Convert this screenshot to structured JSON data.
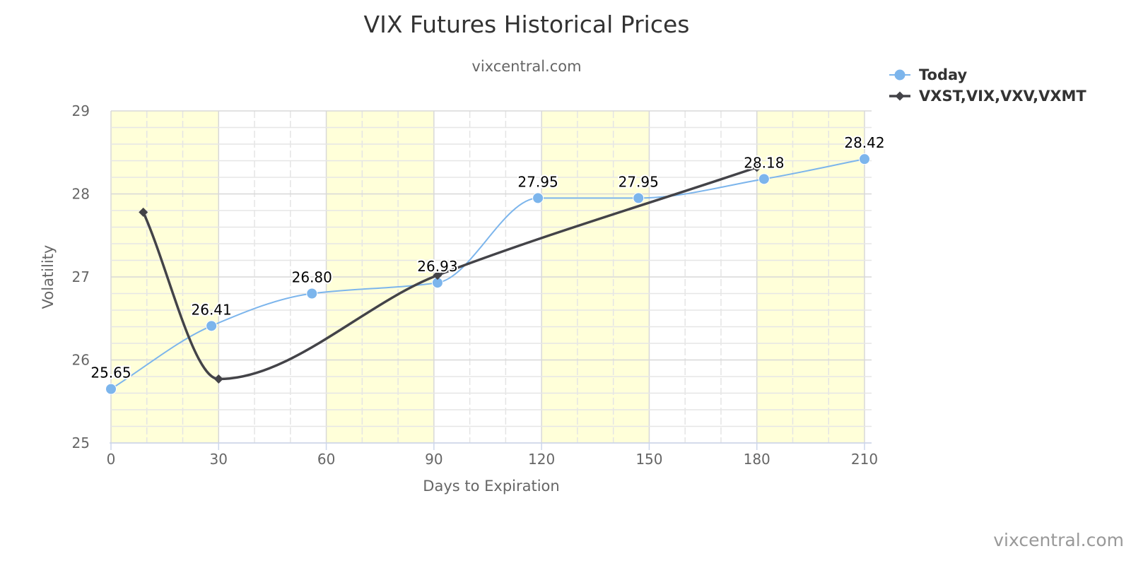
{
  "chart_data": {
    "type": "line",
    "title": "VIX Futures Historical Prices",
    "subtitle": "vixcentral.com",
    "xlabel": "Days to Expiration",
    "ylabel": "Volatility",
    "credit": "vixcentral.com",
    "xlim": [
      0,
      210
    ],
    "ylim": [
      25,
      29
    ],
    "x_ticks": [
      0,
      30,
      60,
      90,
      120,
      150,
      180,
      210
    ],
    "y_ticks": [
      25,
      26,
      27,
      28,
      29
    ],
    "grid": true,
    "legend_position": "top-right",
    "bands": [
      [
        0,
        30
      ],
      [
        60,
        90
      ],
      [
        120,
        150
      ],
      [
        180,
        210
      ]
    ],
    "series": [
      {
        "name": "Today",
        "color": "#7cb5ec",
        "marker": "circle",
        "x": [
          0,
          28,
          56,
          91,
          119,
          147,
          182,
          210
        ],
        "y": [
          25.65,
          26.41,
          26.8,
          26.93,
          27.95,
          27.95,
          28.18,
          28.42
        ],
        "labels": [
          "25.65",
          "26.41",
          "26.80",
          "26.93",
          "27.95",
          "27.95",
          "28.18",
          "28.42"
        ]
      },
      {
        "name": "VXST,VIX,VXV,VXMT",
        "color": "#434348",
        "marker": "diamond",
        "x": [
          9,
          30,
          91,
          180
        ],
        "y": [
          27.78,
          25.77,
          27.02,
          28.32
        ]
      }
    ]
  }
}
